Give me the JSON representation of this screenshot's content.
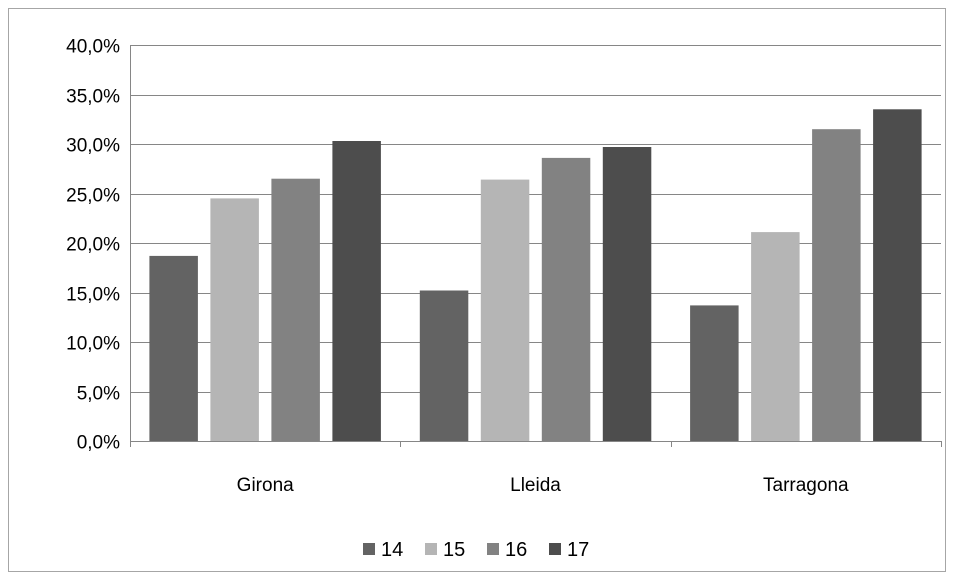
{
  "chart_data": {
    "type": "bar",
    "title": "",
    "xlabel": "",
    "ylabel": "",
    "categories": [
      "Girona",
      "Lleida",
      "Tarragona"
    ],
    "series": [
      {
        "name": "14",
        "values": [
          18.7,
          15.2,
          13.7
        ],
        "color": "#636363"
      },
      {
        "name": "15",
        "values": [
          24.5,
          26.4,
          21.1
        ],
        "color": "#b5b5b5"
      },
      {
        "name": "16",
        "values": [
          26.5,
          28.6,
          31.5
        ],
        "color": "#828282"
      },
      {
        "name": "17",
        "values": [
          30.3,
          29.7,
          33.5
        ],
        "color": "#4d4d4d"
      }
    ],
    "ylim": [
      0,
      40
    ],
    "y_ticks": [
      0,
      5,
      10,
      15,
      20,
      25,
      30,
      35,
      40
    ],
    "y_tick_labels": [
      "0,0%",
      "5,0%",
      "10,0%",
      "15,0%",
      "20,0%",
      "25,0%",
      "30,0%",
      "35,0%",
      "40,0%"
    ],
    "grid": true,
    "legend_position": "bottom"
  }
}
